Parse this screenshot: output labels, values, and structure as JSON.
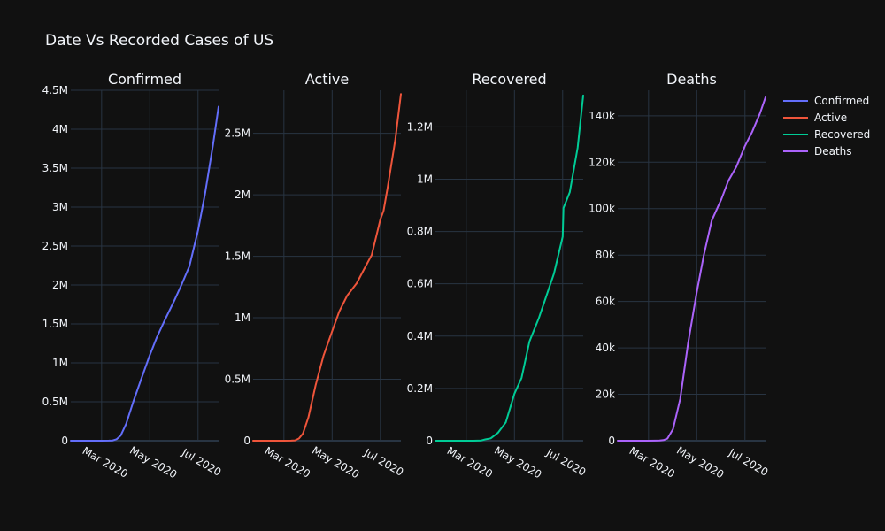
{
  "title": "Date Vs Recorded Cases of US",
  "chart_data": {
    "type": "line",
    "title": "Date Vs Recorded Cases of US",
    "legend": {
      "placement": "top-right"
    },
    "grid": true,
    "x_ticks": [
      "Mar 2020",
      "May 2020",
      "Jul 2020"
    ],
    "xlim": [
      "2020-01-22",
      "2020-07-27"
    ],
    "subplots": [
      {
        "title": "Confirmed",
        "color": "#636efa",
        "ylim": [
          0,
          4500000
        ],
        "y_ticks": [
          0,
          500000,
          1000000,
          1500000,
          2000000,
          2500000,
          3000000,
          3500000,
          4000000,
          4500000
        ],
        "y_tick_labels": [
          "0",
          "0.5M",
          "1M",
          "1.5M",
          "2M",
          "2.5M",
          "3M",
          "3.5M",
          "4M",
          "4.5M"
        ],
        "series": {
          "name": "Confirmed",
          "x": [
            "2020-01-22",
            "2020-02-15",
            "2020-03-01",
            "2020-03-10",
            "2020-03-15",
            "2020-03-20",
            "2020-03-25",
            "2020-04-01",
            "2020-04-10",
            "2020-04-20",
            "2020-05-01",
            "2020-05-10",
            "2020-05-20",
            "2020-06-01",
            "2020-06-10",
            "2020-06-20",
            "2020-07-01",
            "2020-07-10",
            "2020-07-20",
            "2020-07-27"
          ],
          "y": [
            1,
            15,
            30,
            1000,
            3500,
            19000,
            65000,
            215000,
            500000,
            790000,
            1100000,
            1330000,
            1550000,
            1800000,
            2000000,
            2240000,
            2700000,
            3180000,
            3800000,
            4290000
          ]
        }
      },
      {
        "title": "Active",
        "color": "#ef553b",
        "ylim": [
          0,
          2850000
        ],
        "y_ticks": [
          0,
          500000,
          1000000,
          1500000,
          2000000,
          2500000
        ],
        "y_tick_labels": [
          "0",
          "0.5M",
          "1M",
          "1.5M",
          "2M",
          "2.5M"
        ],
        "series": {
          "name": "Active",
          "x": [
            "2020-01-22",
            "2020-02-15",
            "2020-03-01",
            "2020-03-10",
            "2020-03-15",
            "2020-03-20",
            "2020-03-25",
            "2020-04-01",
            "2020-04-10",
            "2020-04-20",
            "2020-05-01",
            "2020-05-10",
            "2020-05-20",
            "2020-06-01",
            "2020-06-10",
            "2020-06-20",
            "2020-07-01",
            "2020-07-05",
            "2020-07-10",
            "2020-07-20",
            "2020-07-27"
          ],
          "y": [
            1,
            15,
            25,
            900,
            3200,
            18000,
            58000,
            190000,
            450000,
            690000,
            890000,
            1050000,
            1180000,
            1280000,
            1390000,
            1510000,
            1800000,
            1870000,
            2050000,
            2450000,
            2820000
          ]
        }
      },
      {
        "title": "Recovered",
        "color": "#00cc96",
        "ylim": [
          0,
          1340000
        ],
        "y_ticks": [
          0,
          200000,
          400000,
          600000,
          800000,
          1000000,
          1200000
        ],
        "y_tick_labels": [
          "0",
          "0.2M",
          "0.4M",
          "0.6M",
          "0.8M",
          "1M",
          "1.2M"
        ],
        "series": {
          "name": "Recovered",
          "x": [
            "2020-01-22",
            "2020-02-15",
            "2020-03-10",
            "2020-03-20",
            "2020-03-25",
            "2020-04-01",
            "2020-04-10",
            "2020-04-20",
            "2020-05-01",
            "2020-05-10",
            "2020-05-20",
            "2020-06-01",
            "2020-06-10",
            "2020-06-20",
            "2020-07-01",
            "2020-07-02",
            "2020-07-10",
            "2020-07-20",
            "2020-07-27"
          ],
          "y": [
            0,
            5,
            100,
            1000,
            5000,
            9000,
            30000,
            70000,
            180000,
            240000,
            380000,
            470000,
            550000,
            640000,
            780000,
            890000,
            950000,
            1120000,
            1320000
          ]
        }
      },
      {
        "title": "Deaths",
        "color": "#ab63fa",
        "ylim": [
          0,
          151000
        ],
        "y_ticks": [
          0,
          20000,
          40000,
          60000,
          80000,
          100000,
          120000,
          140000
        ],
        "y_tick_labels": [
          "0",
          "20k",
          "40k",
          "60k",
          "80k",
          "100k",
          "120k",
          "140k"
        ],
        "series": {
          "name": "Deaths",
          "x": [
            "2020-01-22",
            "2020-02-29",
            "2020-03-10",
            "2020-03-15",
            "2020-03-20",
            "2020-03-25",
            "2020-04-01",
            "2020-04-10",
            "2020-04-20",
            "2020-05-01",
            "2020-05-10",
            "2020-05-20",
            "2020-06-01",
            "2020-06-10",
            "2020-06-20",
            "2020-07-01",
            "2020-07-10",
            "2020-07-20",
            "2020-07-27"
          ],
          "y": [
            0,
            1,
            30,
            70,
            250,
            1000,
            5000,
            18000,
            42000,
            64000,
            80000,
            95000,
            104000,
            112000,
            118000,
            127000,
            133000,
            141000,
            148000
          ]
        }
      }
    ]
  }
}
